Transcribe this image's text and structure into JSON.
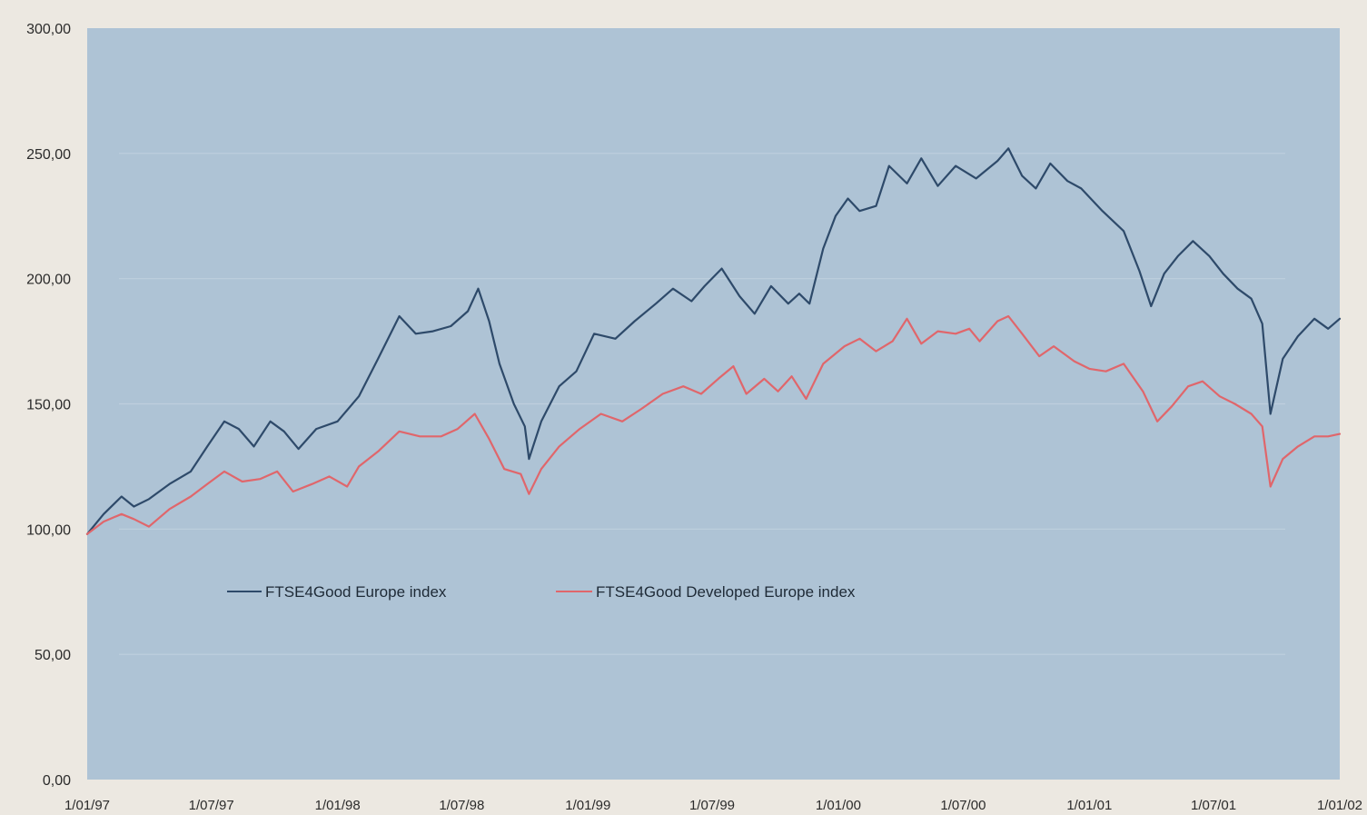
{
  "chart_data": {
    "type": "line",
    "title": "",
    "xlabel": "",
    "ylabel": "",
    "ylim": [
      0,
      300
    ],
    "xlim": [
      "1997-01-01",
      "2002-01-01"
    ],
    "grid": false,
    "legend_placement": "center-left, inside plot below the lines",
    "y_ticks": [
      "0,00",
      "50,00",
      "100,00",
      "150,00",
      "200,00",
      "250,00",
      "300,00"
    ],
    "y_tick_values": [
      0,
      50,
      100,
      150,
      200,
      250,
      300
    ],
    "x_ticks": [
      "1/01/97",
      "1/07/97",
      "1/01/98",
      "1/07/98",
      "1/01/99",
      "1/07/99",
      "1/01/00",
      "1/07/00",
      "1/01/01",
      "1/07/01",
      "1/01/02"
    ],
    "x_tick_dates": [
      "1997-01-01",
      "1997-07-01",
      "1998-01-01",
      "1998-07-01",
      "1999-01-01",
      "1999-07-01",
      "2000-01-01",
      "2000-07-01",
      "2001-01-01",
      "2001-07-01",
      "2002-01-01"
    ],
    "series": [
      {
        "name": "FTSE4Good Europe index",
        "color": "#2e4a6a",
        "points": [
          [
            "1997-01-01",
            98
          ],
          [
            "1997-01-25",
            106
          ],
          [
            "1997-02-20",
            113
          ],
          [
            "1997-03-10",
            109
          ],
          [
            "1997-04-01",
            112
          ],
          [
            "1997-05-01",
            118
          ],
          [
            "1997-06-01",
            123
          ],
          [
            "1997-06-25",
            133
          ],
          [
            "1997-07-20",
            143
          ],
          [
            "1997-08-10",
            140
          ],
          [
            "1997-09-01",
            133
          ],
          [
            "1997-09-25",
            143
          ],
          [
            "1997-10-15",
            139
          ],
          [
            "1997-11-05",
            132
          ],
          [
            "1997-12-01",
            140
          ],
          [
            "1998-01-01",
            143
          ],
          [
            "1998-02-01",
            153
          ],
          [
            "1998-03-01",
            168
          ],
          [
            "1998-04-01",
            185
          ],
          [
            "1998-04-25",
            178
          ],
          [
            "1998-05-20",
            179
          ],
          [
            "1998-06-15",
            181
          ],
          [
            "1998-07-10",
            187
          ],
          [
            "1998-07-25",
            196
          ],
          [
            "1998-08-10",
            183
          ],
          [
            "1998-08-25",
            166
          ],
          [
            "1998-09-15",
            150
          ],
          [
            "1998-10-01",
            141
          ],
          [
            "1998-10-07",
            128
          ],
          [
            "1998-10-25",
            143
          ],
          [
            "1998-11-20",
            157
          ],
          [
            "1998-12-15",
            163
          ],
          [
            "1999-01-10",
            178
          ],
          [
            "1999-02-10",
            176
          ],
          [
            "1999-03-10",
            183
          ],
          [
            "1999-04-10",
            190
          ],
          [
            "1999-05-05",
            196
          ],
          [
            "1999-06-01",
            191
          ],
          [
            "1999-06-20",
            197
          ],
          [
            "1999-07-15",
            204
          ],
          [
            "1999-08-10",
            193
          ],
          [
            "1999-09-01",
            186
          ],
          [
            "1999-09-25",
            197
          ],
          [
            "1999-10-20",
            190
          ],
          [
            "1999-11-05",
            194
          ],
          [
            "1999-11-20",
            190
          ],
          [
            "1999-12-10",
            212
          ],
          [
            "1999-12-28",
            225
          ],
          [
            "2000-01-15",
            232
          ],
          [
            "2000-02-01",
            227
          ],
          [
            "2000-02-25",
            229
          ],
          [
            "2000-03-15",
            245
          ],
          [
            "2000-04-10",
            238
          ],
          [
            "2000-05-01",
            248
          ],
          [
            "2000-05-25",
            237
          ],
          [
            "2000-06-20",
            245
          ],
          [
            "2000-07-20",
            240
          ],
          [
            "2000-08-20",
            247
          ],
          [
            "2000-09-05",
            252
          ],
          [
            "2000-09-25",
            241
          ],
          [
            "2000-10-15",
            236
          ],
          [
            "2000-11-05",
            246
          ],
          [
            "2000-11-30",
            239
          ],
          [
            "2000-12-20",
            236
          ],
          [
            "2001-01-20",
            227
          ],
          [
            "2001-02-20",
            219
          ],
          [
            "2001-03-15",
            203
          ],
          [
            "2001-04-01",
            189
          ],
          [
            "2001-04-20",
            202
          ],
          [
            "2001-05-10",
            209
          ],
          [
            "2001-06-01",
            215
          ],
          [
            "2001-06-25",
            209
          ],
          [
            "2001-07-15",
            202
          ],
          [
            "2001-08-05",
            196
          ],
          [
            "2001-08-25",
            192
          ],
          [
            "2001-09-10",
            182
          ],
          [
            "2001-09-22",
            146
          ],
          [
            "2001-10-10",
            168
          ],
          [
            "2001-11-01",
            177
          ],
          [
            "2001-11-25",
            184
          ],
          [
            "2001-12-15",
            180
          ],
          [
            "2002-01-01",
            184
          ]
        ]
      },
      {
        "name": "FTSE4Good Developed Europe index",
        "color": "#e0666b",
        "points": [
          [
            "1997-01-01",
            98
          ],
          [
            "1997-01-25",
            103
          ],
          [
            "1997-02-20",
            106
          ],
          [
            "1997-03-10",
            104
          ],
          [
            "1997-04-01",
            101
          ],
          [
            "1997-05-01",
            108
          ],
          [
            "1997-06-01",
            113
          ],
          [
            "1997-06-25",
            118
          ],
          [
            "1997-07-20",
            123
          ],
          [
            "1997-08-15",
            119
          ],
          [
            "1997-09-10",
            120
          ],
          [
            "1997-10-05",
            123
          ],
          [
            "1997-10-28",
            115
          ],
          [
            "1997-11-25",
            118
          ],
          [
            "1997-12-20",
            121
          ],
          [
            "1998-01-15",
            117
          ],
          [
            "1998-02-01",
            125
          ],
          [
            "1998-03-01",
            131
          ],
          [
            "1998-04-01",
            139
          ],
          [
            "1998-05-01",
            137
          ],
          [
            "1998-06-01",
            137
          ],
          [
            "1998-06-25",
            140
          ],
          [
            "1998-07-20",
            146
          ],
          [
            "1998-08-10",
            136
          ],
          [
            "1998-09-01",
            124
          ],
          [
            "1998-09-25",
            122
          ],
          [
            "1998-10-07",
            114
          ],
          [
            "1998-10-25",
            124
          ],
          [
            "1998-11-20",
            133
          ],
          [
            "1998-12-20",
            140
          ],
          [
            "1999-01-20",
            146
          ],
          [
            "1999-02-20",
            143
          ],
          [
            "1999-03-20",
            148
          ],
          [
            "1999-04-20",
            154
          ],
          [
            "1999-05-20",
            157
          ],
          [
            "1999-06-15",
            154
          ],
          [
            "1999-07-10",
            160
          ],
          [
            "1999-08-01",
            165
          ],
          [
            "1999-08-20",
            154
          ],
          [
            "1999-09-15",
            160
          ],
          [
            "1999-10-05",
            155
          ],
          [
            "1999-10-25",
            161
          ],
          [
            "1999-11-15",
            152
          ],
          [
            "1999-12-10",
            166
          ],
          [
            "2000-01-10",
            173
          ],
          [
            "2000-02-01",
            176
          ],
          [
            "2000-02-25",
            171
          ],
          [
            "2000-03-20",
            175
          ],
          [
            "2000-04-10",
            184
          ],
          [
            "2000-05-01",
            174
          ],
          [
            "2000-05-25",
            179
          ],
          [
            "2000-06-20",
            178
          ],
          [
            "2000-07-10",
            180
          ],
          [
            "2000-07-25",
            175
          ],
          [
            "2000-08-20",
            183
          ],
          [
            "2000-09-05",
            185
          ],
          [
            "2000-09-25",
            178
          ],
          [
            "2000-10-20",
            169
          ],
          [
            "2000-11-10",
            173
          ],
          [
            "2000-12-10",
            167
          ],
          [
            "2001-01-01",
            164
          ],
          [
            "2001-01-25",
            163
          ],
          [
            "2001-02-20",
            166
          ],
          [
            "2001-03-20",
            155
          ],
          [
            "2001-04-10",
            143
          ],
          [
            "2001-05-01",
            149
          ],
          [
            "2001-05-25",
            157
          ],
          [
            "2001-06-15",
            159
          ],
          [
            "2001-07-10",
            153
          ],
          [
            "2001-08-01",
            150
          ],
          [
            "2001-08-25",
            146
          ],
          [
            "2001-09-10",
            141
          ],
          [
            "2001-09-22",
            117
          ],
          [
            "2001-10-10",
            128
          ],
          [
            "2001-11-01",
            133
          ],
          [
            "2001-11-25",
            137
          ],
          [
            "2001-12-15",
            137
          ],
          [
            "2002-01-01",
            138
          ]
        ]
      }
    ]
  }
}
